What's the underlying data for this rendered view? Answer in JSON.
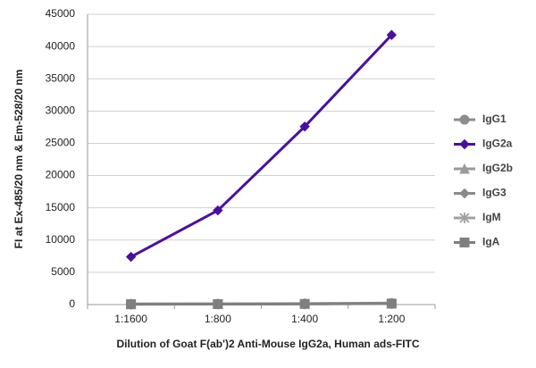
{
  "chart_data": {
    "type": "line",
    "y_label": "FI at Ex-485/20 nm & Em-528/20 nm",
    "x_label": "Dilution of Goat F(ab')2 Anti-Mouse IgG2a, Human ads-FITC",
    "categories": [
      "1:1600",
      "1:800",
      "1:400",
      "1:200"
    ],
    "series": [
      {
        "name": "IgG1",
        "color": "#8c8c8c",
        "marker": "circle",
        "values": [
          100,
          120,
          150,
          250
        ]
      },
      {
        "name": "IgG2a",
        "color": "#4b0fa0",
        "marker": "diamond",
        "values": [
          7400,
          14600,
          27600,
          41800
        ]
      },
      {
        "name": "IgG2b",
        "color": "#9a9a9a",
        "marker": "triangle",
        "values": [
          80,
          100,
          130,
          200
        ]
      },
      {
        "name": "IgG3",
        "color": "#8a8a8a",
        "marker": "diamond",
        "values": [
          70,
          90,
          120,
          180
        ]
      },
      {
        "name": "IgM",
        "color": "#a0a0a0",
        "marker": "star",
        "values": [
          60,
          80,
          110,
          160
        ]
      },
      {
        "name": "IgA",
        "color": "#7f7f7f",
        "marker": "square",
        "values": [
          50,
          70,
          100,
          150
        ]
      }
    ],
    "ylim": [
      0,
      45000
    ],
    "yticks": [
      0,
      5000,
      10000,
      15000,
      20000,
      25000,
      30000,
      35000,
      40000,
      45000
    ],
    "grid": true
  }
}
